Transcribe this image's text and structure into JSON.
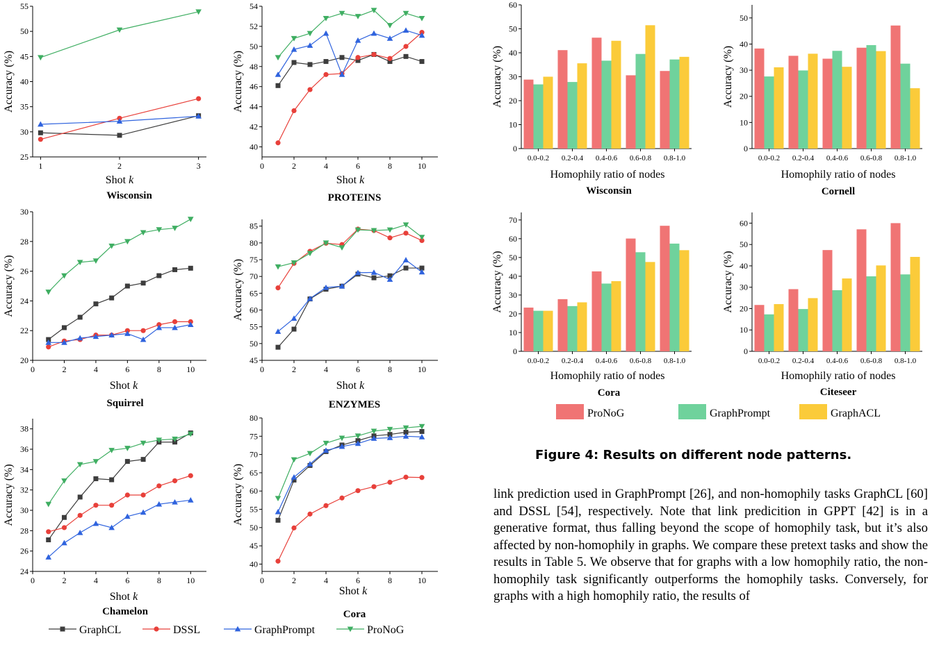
{
  "left_legend": [
    {
      "label": "GraphCL",
      "color": "#3d3d3d",
      "marker": "square"
    },
    {
      "label": "DSSL",
      "color": "#e8403a",
      "marker": "circle"
    },
    {
      "label": "GraphPrompt",
      "color": "#2f63de",
      "marker": "triangle-up"
    },
    {
      "label": "ProNoG",
      "color": "#3fae62",
      "marker": "triangle-down"
    }
  ],
  "right_legend": [
    {
      "label": "ProNoG",
      "color": "#f07474"
    },
    {
      "label": "GraphPrompt",
      "color": "#6fd29c"
    },
    {
      "label": "GraphACL",
      "color": "#fbcb3a"
    }
  ],
  "figure_caption": "Figure 4: Results on different node patterns.",
  "paragraph": "link prediction used in GraphPrompt [26], and non-homophily tasks GraphCL [60] and DSSL [54], respectively. Note that link predicition in GPPT [42] is in a generative format, thus falling beyond the scope of homophily task, but it’s also affected by non-homophily in graphs. We compare these pretext tasks and show the results in Table 5. We observe that for graphs with a low homophily ratio, the non-homophily task significantly outperforms the homophily tasks. Conversely, for graphs with a high homophily ratio, the results of",
  "chart_data": [
    {
      "type": "line",
      "title": "Wisconsin",
      "xlabel": "Shot k",
      "ylabel": "Accuracy (%)",
      "x": [
        1,
        2,
        3
      ],
      "xlim": [
        0.9,
        3.1
      ],
      "xticks": [
        1,
        2,
        3
      ],
      "ylim": [
        25,
        55
      ],
      "yticks": [
        25,
        30,
        35,
        40,
        45,
        50,
        55
      ],
      "series": [
        {
          "name": "GraphCL",
          "values": [
            29.8,
            29.3,
            33.2
          ]
        },
        {
          "name": "DSSL",
          "values": [
            28.5,
            32.7,
            36.6
          ]
        },
        {
          "name": "GraphPrompt",
          "values": [
            31.5,
            32.1,
            33.1
          ]
        },
        {
          "name": "ProNoG",
          "values": [
            44.8,
            50.3,
            53.9
          ]
        }
      ]
    },
    {
      "type": "line",
      "title": "PROTEINS",
      "xlabel": "Shot k",
      "ylabel": "Accuracy (%)",
      "x": [
        1,
        2,
        3,
        4,
        5,
        6,
        7,
        8,
        9,
        10
      ],
      "xlim": [
        0,
        11
      ],
      "xticks": [
        0,
        2,
        4,
        6,
        8,
        10
      ],
      "ylim": [
        39,
        54
      ],
      "yticks": [
        40,
        42,
        44,
        46,
        48,
        50,
        52,
        54
      ],
      "series": [
        {
          "name": "GraphCL",
          "values": [
            46.1,
            48.4,
            48.2,
            48.5,
            48.9,
            48.6,
            49.2,
            48.5,
            49.0,
            48.5
          ]
        },
        {
          "name": "DSSL",
          "values": [
            40.4,
            43.6,
            45.7,
            47.2,
            47.3,
            48.9,
            49.2,
            48.8,
            50.0,
            51.4
          ]
        },
        {
          "name": "GraphPrompt",
          "values": [
            47.2,
            49.7,
            50.1,
            51.3,
            47.2,
            50.6,
            51.3,
            50.8,
            51.6,
            51.1
          ]
        },
        {
          "name": "ProNoG",
          "values": [
            48.9,
            50.8,
            51.3,
            52.8,
            53.3,
            53.0,
            53.6,
            52.1,
            53.3,
            52.8
          ]
        }
      ]
    },
    {
      "type": "line",
      "title": "Squirrel",
      "xlabel": "Shot k",
      "ylabel": "Accuracy (%)",
      "x": [
        1,
        2,
        3,
        4,
        5,
        6,
        7,
        8,
        9,
        10
      ],
      "xlim": [
        0,
        11
      ],
      "xticks": [
        0,
        2,
        4,
        6,
        8,
        10
      ],
      "ylim": [
        20,
        30
      ],
      "yticks": [
        20,
        22,
        24,
        26,
        28,
        30
      ],
      "series": [
        {
          "name": "GraphCL",
          "values": [
            21.4,
            22.2,
            22.9,
            23.8,
            24.2,
            25.0,
            25.2,
            25.7,
            26.1,
            26.2
          ]
        },
        {
          "name": "DSSL",
          "values": [
            20.9,
            21.3,
            21.4,
            21.7,
            21.7,
            22.0,
            22.0,
            22.4,
            22.6,
            22.6
          ]
        },
        {
          "name": "GraphPrompt",
          "values": [
            21.2,
            21.2,
            21.5,
            21.6,
            21.7,
            21.8,
            21.4,
            22.2,
            22.2,
            22.4
          ]
        },
        {
          "name": "ProNoG",
          "values": [
            24.6,
            25.7,
            26.6,
            26.7,
            27.7,
            28.0,
            28.6,
            28.8,
            28.9,
            29.5
          ]
        }
      ]
    },
    {
      "type": "line",
      "title": "ENZYMES",
      "xlabel": "Shot k",
      "ylabel": "Accuracy (%)",
      "x": [
        1,
        2,
        3,
        4,
        5,
        6,
        7,
        8,
        9,
        10
      ],
      "xlim": [
        0,
        11
      ],
      "xticks": [
        0,
        2,
        4,
        6,
        8,
        10
      ],
      "ylim": [
        45,
        87
      ],
      "yticks": [
        45,
        50,
        55,
        60,
        65,
        70,
        75,
        80,
        85
      ],
      "series": [
        {
          "name": "GraphCL",
          "values": [
            48.9,
            54.3,
            63.3,
            66.2,
            67.1,
            70.7,
            69.6,
            70.2,
            72.5,
            72.5
          ]
        },
        {
          "name": "DSSL",
          "values": [
            66.6,
            73.9,
            77.5,
            79.9,
            79.5,
            84.1,
            83.7,
            81.5,
            82.9,
            80.7
          ]
        },
        {
          "name": "GraphPrompt",
          "values": [
            53.6,
            57.5,
            63.4,
            66.7,
            67.1,
            71.1,
            71.2,
            69.1,
            74.9,
            71.3
          ]
        },
        {
          "name": "ProNoG",
          "values": [
            72.9,
            74.1,
            76.9,
            80.0,
            78.6,
            83.9,
            83.7,
            83.9,
            85.4,
            81.7
          ]
        }
      ]
    },
    {
      "type": "line",
      "title": "Chamelon",
      "xlabel": "Shot k",
      "ylabel": "Accuracy (%)",
      "x": [
        1,
        2,
        3,
        4,
        5,
        6,
        7,
        8,
        9,
        10
      ],
      "xlim": [
        0,
        11
      ],
      "xticks": [
        0,
        2,
        4,
        6,
        8,
        10
      ],
      "ylim": [
        24,
        39
      ],
      "yticks": [
        24,
        26,
        28,
        30,
        32,
        34,
        36,
        38
      ],
      "series": [
        {
          "name": "GraphCL",
          "values": [
            27.1,
            29.3,
            31.3,
            33.1,
            33.0,
            34.8,
            35.0,
            36.7,
            36.7,
            37.6
          ]
        },
        {
          "name": "DSSL",
          "values": [
            27.9,
            28.3,
            29.5,
            30.5,
            30.5,
            31.5,
            31.5,
            32.4,
            32.9,
            33.4
          ]
        },
        {
          "name": "GraphPrompt",
          "values": [
            25.4,
            26.8,
            27.8,
            28.7,
            28.3,
            29.4,
            29.8,
            30.6,
            30.8,
            31.0
          ]
        },
        {
          "name": "ProNoG",
          "values": [
            30.6,
            32.9,
            34.5,
            34.8,
            35.9,
            36.1,
            36.6,
            36.9,
            37.0,
            37.5
          ]
        }
      ]
    },
    {
      "type": "line",
      "title": "Cora",
      "xlabel": "Shot k",
      "ylabel": "Accuracy (%)",
      "x": [
        1,
        2,
        3,
        4,
        5,
        6,
        7,
        8,
        9,
        10
      ],
      "xlim": [
        0,
        11
      ],
      "xticks": [
        0,
        2,
        4,
        6,
        8,
        10
      ],
      "ylim": [
        38,
        80
      ],
      "yticks": [
        40,
        45,
        50,
        55,
        60,
        65,
        70,
        75,
        80
      ],
      "series": [
        {
          "name": "GraphCL",
          "values": [
            52.0,
            63.0,
            67.0,
            70.8,
            72.6,
            73.8,
            75.1,
            75.5,
            76.1,
            76.3
          ]
        },
        {
          "name": "DSSL",
          "values": [
            40.8,
            49.9,
            53.7,
            56.0,
            58.1,
            60.1,
            61.2,
            62.4,
            63.8,
            63.7
          ]
        },
        {
          "name": "GraphPrompt",
          "values": [
            54.3,
            63.8,
            67.4,
            71.1,
            72.2,
            73.0,
            74.4,
            74.6,
            75.0,
            74.8
          ]
        },
        {
          "name": "ProNoG",
          "values": [
            58.0,
            68.6,
            70.3,
            73.1,
            74.5,
            75.1,
            76.4,
            76.9,
            77.3,
            77.7
          ]
        }
      ]
    },
    {
      "type": "bar",
      "title": "Wisconsin",
      "xlabel": "Homophily ratio of nodes",
      "ylabel": "Accuracy (%)",
      "categories": [
        "0.0-0.2",
        "0.2-0.4",
        "0.4-0.6",
        "0.6-0.8",
        "0.8-1.0"
      ],
      "ylim": [
        0,
        60
      ],
      "yticks": [
        0,
        10,
        20,
        30,
        40,
        50,
        60
      ],
      "series": [
        {
          "name": "ProNoG",
          "values": [
            28.8,
            41.1,
            46.3,
            30.6,
            32.4
          ]
        },
        {
          "name": "GraphPrompt",
          "values": [
            26.8,
            27.8,
            36.7,
            39.5,
            37.2
          ]
        },
        {
          "name": "GraphACL",
          "values": [
            30.0,
            35.6,
            45.0,
            51.5,
            38.3
          ]
        }
      ]
    },
    {
      "type": "bar",
      "title": "Cornell",
      "xlabel": "Homophily ratio of nodes",
      "ylabel": "Accuracy (%)",
      "categories": [
        "0.0-0.2",
        "0.2-0.4",
        "0.4-0.6",
        "0.6-0.8",
        "0.8-1.0"
      ],
      "ylim": [
        0,
        55
      ],
      "yticks": [
        0,
        10,
        20,
        30,
        40,
        50
      ],
      "series": [
        {
          "name": "ProNoG",
          "values": [
            38.3,
            35.5,
            34.4,
            38.6,
            47.1
          ]
        },
        {
          "name": "GraphPrompt",
          "values": [
            27.6,
            29.9,
            37.4,
            39.6,
            32.5
          ]
        },
        {
          "name": "GraphACL",
          "values": [
            31.1,
            36.3,
            31.3,
            37.3,
            23.1
          ]
        }
      ]
    },
    {
      "type": "bar",
      "title": "Cora",
      "xlabel": "Homophily ratio of nodes",
      "ylabel": "Accuracy (%)",
      "categories": [
        "0.0-0.2",
        "0.2-0.4",
        "0.4-0.6",
        "0.6-0.8",
        "0.8-1.0"
      ],
      "ylim": [
        0,
        74
      ],
      "yticks": [
        0,
        10,
        20,
        30,
        40,
        50,
        60,
        70
      ],
      "series": [
        {
          "name": "ProNoG",
          "values": [
            23.3,
            27.8,
            42.6,
            60.1,
            66.9
          ]
        },
        {
          "name": "GraphPrompt",
          "values": [
            21.6,
            24.1,
            36.1,
            52.8,
            57.4
          ]
        },
        {
          "name": "GraphACL",
          "values": [
            21.6,
            26.1,
            37.4,
            47.6,
            53.9
          ]
        }
      ]
    },
    {
      "type": "bar",
      "title": "Citeseer",
      "xlabel": "Homophily ratio of nodes",
      "ylabel": "Accuracy (%)",
      "categories": [
        "0.0-0.2",
        "0.2-0.4",
        "0.4-0.6",
        "0.6-0.8",
        "0.8-1.0"
      ],
      "ylim": [
        0,
        65
      ],
      "yticks": [
        0,
        10,
        20,
        30,
        40,
        50,
        60
      ],
      "series": [
        {
          "name": "ProNoG",
          "values": [
            21.7,
            29.1,
            47.4,
            57.1,
            60.0
          ]
        },
        {
          "name": "GraphPrompt",
          "values": [
            17.3,
            19.8,
            28.6,
            35.1,
            36.0
          ]
        },
        {
          "name": "GraphACL",
          "values": [
            22.1,
            24.9,
            34.1,
            40.2,
            44.2
          ]
        }
      ]
    }
  ]
}
